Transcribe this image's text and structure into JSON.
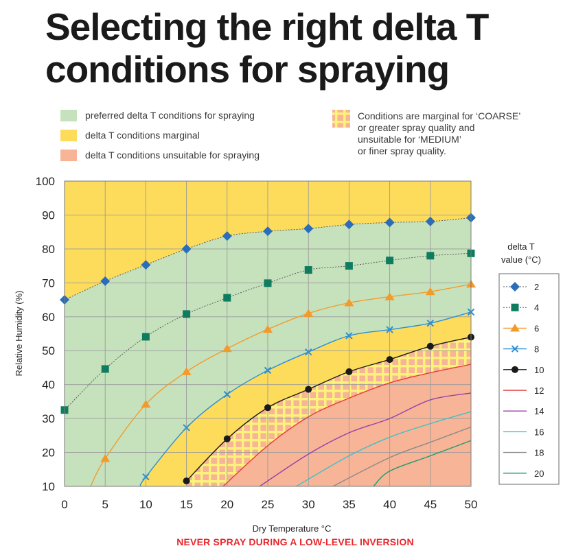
{
  "title_line1": "Selecting the right delta T",
  "title_line2": "conditions for spraying",
  "legend": {
    "preferred": "preferred delta T conditions for spraying",
    "marginal": "delta T conditions marginal",
    "unsuitable": "delta T conditions unsuitable for spraying",
    "note_lines": [
      "Conditions are marginal for ‘COARSE’",
      "or greater spray quality and",
      "unsuitable for ‘MEDIUM’",
      "or finer spray quality."
    ]
  },
  "footer": "NEVER SPRAY DURING A LOW-LEVEL INVERSION",
  "colors": {
    "preferred": "#c6e2bc",
    "marginal": "#fddc5c",
    "unsuitable": "#f7b496",
    "hatch": "#fdf27a",
    "grid": "#9a9a9a"
  },
  "chart_data": {
    "type": "line",
    "title": "Selecting the right delta T conditions for spraying",
    "xlabel": "Dry Temperature °C",
    "ylabel": "Relative Humidity (%)",
    "xlim": [
      0,
      50
    ],
    "ylim": [
      10,
      100
    ],
    "xticks": [
      0,
      5,
      10,
      15,
      20,
      25,
      30,
      35,
      40,
      45,
      50
    ],
    "yticks": [
      10,
      20,
      30,
      40,
      50,
      60,
      70,
      80,
      90,
      100
    ],
    "grid": true,
    "legend_title": "delta T value (°C)",
    "legend_position": "right",
    "series": [
      {
        "name": "2",
        "color": "#2a6ebb",
        "marker": "diamond",
        "dashed": true,
        "x": [
          0,
          5,
          10,
          15,
          20,
          25,
          30,
          35,
          40,
          45,
          50
        ],
        "y": [
          65,
          70.5,
          75.3,
          80,
          83.8,
          85.2,
          86,
          87.2,
          87.8,
          88.1,
          89.2
        ]
      },
      {
        "name": "4",
        "color": "#0f7c5f",
        "marker": "square",
        "dashed": true,
        "x": [
          0,
          5,
          10,
          15,
          20,
          25,
          30,
          35,
          40,
          45,
          50
        ],
        "y": [
          32.5,
          44.6,
          54.1,
          60.8,
          65.6,
          69.9,
          73.8,
          75,
          76.6,
          78,
          78.7
        ]
      },
      {
        "name": "6",
        "color": "#f39a2c",
        "marker": "triangle",
        "dashed": false,
        "x": [
          3.2,
          5,
          10,
          15,
          20,
          25,
          30,
          35,
          40,
          45,
          50
        ],
        "y": [
          10,
          18.2,
          34.2,
          43.8,
          50.6,
          56.3,
          61,
          64.1,
          65.9,
          67.4,
          69.6
        ]
      },
      {
        "name": "8",
        "color": "#2a8fd6",
        "marker": "x",
        "dashed": false,
        "x": [
          9.3,
          10,
          15,
          20,
          25,
          30,
          35,
          40,
          45,
          50
        ],
        "y": [
          10,
          12.8,
          27.3,
          37.1,
          44.2,
          49.6,
          54.4,
          56.2,
          58.1,
          61.4
        ]
      },
      {
        "name": "10",
        "color": "#1a1a1a",
        "marker": "circle",
        "dashed": false,
        "x": [
          15,
          20,
          25,
          30,
          35,
          40,
          45,
          50
        ],
        "y": [
          11.6,
          24,
          33.2,
          38.6,
          43.8,
          47.4,
          51.3,
          54
        ]
      },
      {
        "name": "12",
        "color": "#e63b3b",
        "marker": "none",
        "dashed": false,
        "x": [
          19.5,
          25,
          30,
          35,
          40,
          45,
          50
        ],
        "y": [
          10,
          22,
          30.5,
          36,
          40.5,
          43.5,
          46
        ]
      },
      {
        "name": "14",
        "color": "#9a3fa8",
        "marker": "none",
        "dashed": false,
        "x": [
          24,
          30,
          35,
          40,
          45,
          50
        ],
        "y": [
          10,
          19.5,
          25.8,
          30,
          35.5,
          37.5
        ]
      },
      {
        "name": "16",
        "color": "#3ec0c8",
        "marker": "none",
        "dashed": false,
        "x": [
          28.5,
          35,
          40,
          45,
          50
        ],
        "y": [
          10,
          19,
          24.5,
          28.5,
          32
        ]
      },
      {
        "name": "18",
        "color": "#8a8a8a",
        "marker": "none",
        "dashed": false,
        "x": [
          33,
          40,
          45,
          50
        ],
        "y": [
          10,
          18.5,
          23,
          27.5
        ]
      },
      {
        "name": "20",
        "color": "#1e9a6e",
        "marker": "none",
        "dashed": false,
        "x": [
          38,
          40,
          45,
          50
        ],
        "y": [
          10,
          14.5,
          19,
          23.5
        ]
      }
    ]
  }
}
